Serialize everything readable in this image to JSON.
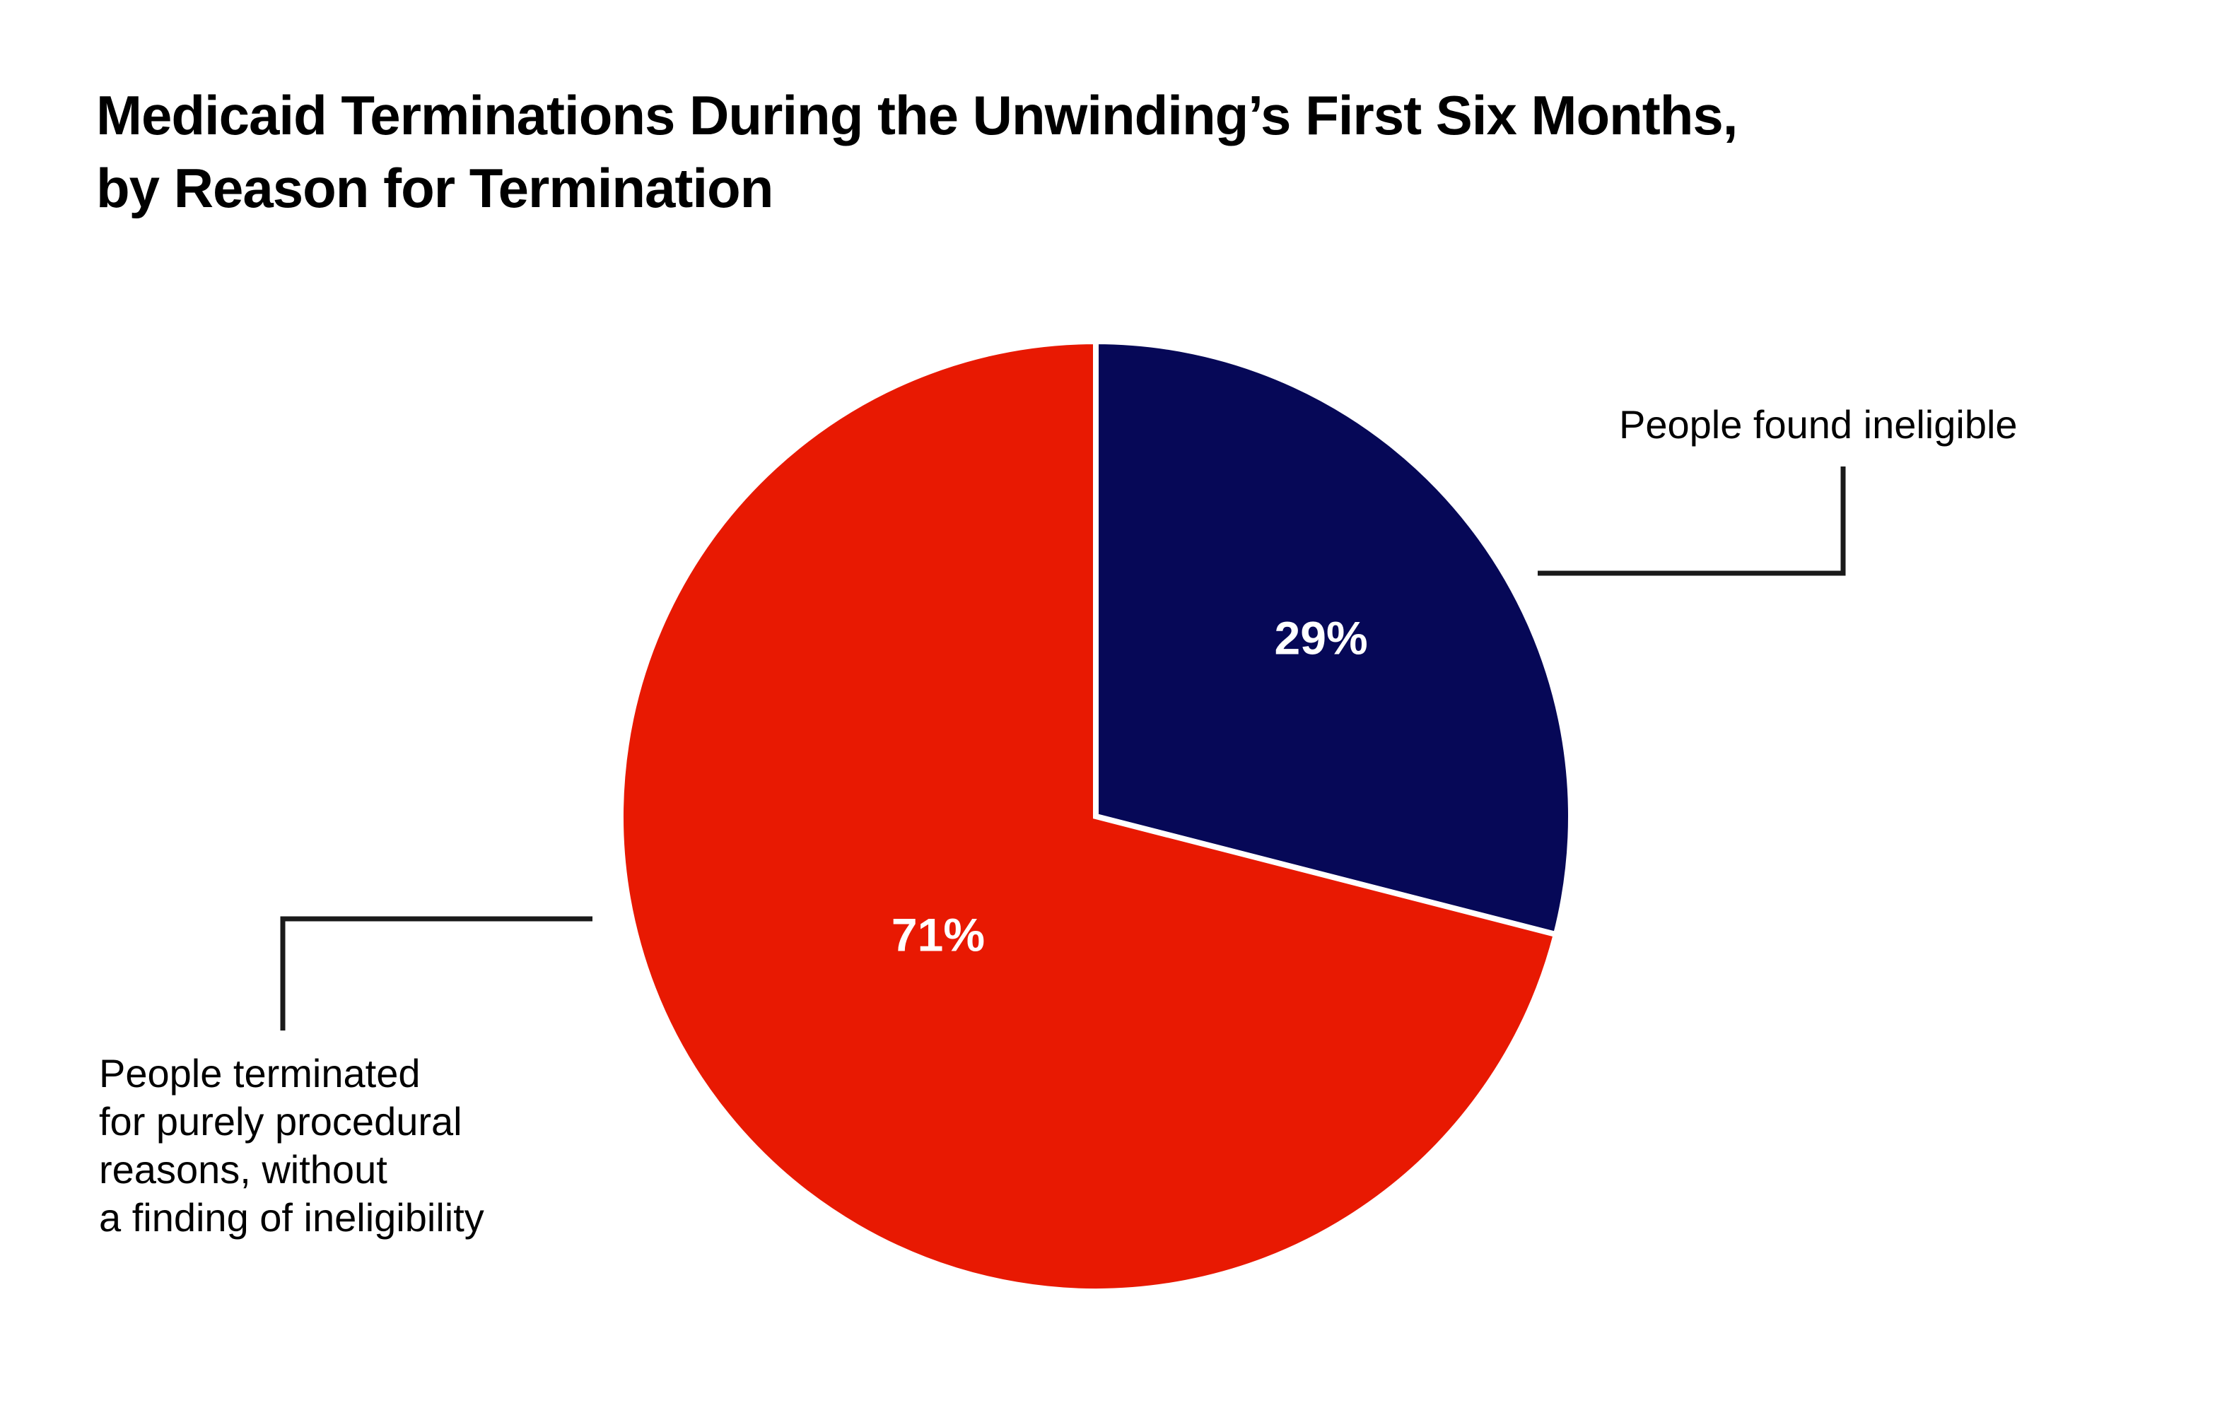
{
  "chart_data": {
    "type": "pie",
    "title": [
      "Medicaid Terminations During the Unwinding’s First Six Months,",
      "by Reason for Termination"
    ],
    "slices": [
      {
        "value": 29,
        "label": "29%",
        "annotation": [
          "People found ineligible"
        ],
        "color": "#060857"
      },
      {
        "value": 71,
        "label": "71%",
        "annotation": [
          "People terminated",
          "for purely procedural",
          "reasons, without",
          "a finding of ineligibility"
        ],
        "color": "#e81902"
      }
    ],
    "start": "12 o'clock",
    "direction": "clockwise",
    "slice_separator_color": "#ffffff",
    "legend": "none (direct annotations with leader lines)"
  }
}
